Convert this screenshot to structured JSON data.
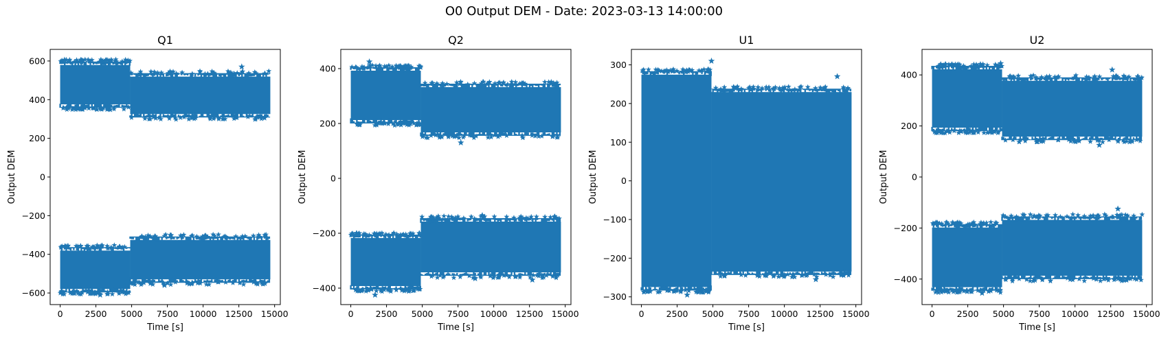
{
  "figure": {
    "suptitle": "O0 Output DEM - Date: 2023-03-13 14:00:00"
  },
  "colors": {
    "series": "#1f77b4",
    "axes": "#000000",
    "background": "#ffffff"
  },
  "chart_data": [
    {
      "type": "scatter",
      "title": "Q1",
      "xlabel": "Time [s]",
      "ylabel": "Output DEM",
      "marker": "star",
      "xlim": [
        -700,
        15400
      ],
      "ylim": [
        -660,
        660
      ],
      "xticks": [
        0,
        2500,
        5000,
        7500,
        10000,
        12500,
        15000
      ],
      "yticks": [
        -600,
        -400,
        -200,
        0,
        200,
        400,
        600
      ],
      "grid": false,
      "bands": [
        {
          "x_start": 0,
          "x_end": 4900,
          "y_low": 365,
          "y_high": 590
        },
        {
          "x_start": 4900,
          "x_end": 14700,
          "y_low": 315,
          "y_high": 530
        },
        {
          "x_start": 0,
          "x_end": 4900,
          "y_low": -590,
          "y_high": -370
        },
        {
          "x_start": 4900,
          "x_end": 14700,
          "y_low": -540,
          "y_high": -315
        }
      ],
      "outliers": [
        {
          "x": 12700,
          "y": 570
        },
        {
          "x": 300,
          "y": 605
        },
        {
          "x": 2800,
          "y": -610
        },
        {
          "x": 7300,
          "y": -560
        }
      ]
    },
    {
      "type": "scatter",
      "title": "Q2",
      "xlabel": "Time [s]",
      "ylabel": "Output DEM",
      "marker": "star",
      "xlim": [
        -700,
        15400
      ],
      "ylim": [
        -460,
        470
      ],
      "xticks": [
        0,
        2500,
        5000,
        7500,
        10000,
        12500,
        15000
      ],
      "yticks": [
        -400,
        -200,
        0,
        200,
        400
      ],
      "grid": false,
      "bands": [
        {
          "x_start": 0,
          "x_end": 4900,
          "y_low": 205,
          "y_high": 400
        },
        {
          "x_start": 4900,
          "x_end": 14700,
          "y_low": 160,
          "y_high": 340
        },
        {
          "x_start": 0,
          "x_end": 4900,
          "y_low": -400,
          "y_high": -210
        },
        {
          "x_start": 4900,
          "x_end": 14700,
          "y_low": -350,
          "y_high": -150
        }
      ],
      "outliers": [
        {
          "x": 1300,
          "y": 425
        },
        {
          "x": 7700,
          "y": 130
        },
        {
          "x": 1700,
          "y": -425
        },
        {
          "x": 8700,
          "y": -365
        },
        {
          "x": 12700,
          "y": -370
        },
        {
          "x": 9200,
          "y": -135
        }
      ]
    },
    {
      "type": "scatter",
      "title": "U1",
      "xlabel": "Time [s]",
      "ylabel": "Output DEM",
      "marker": "star",
      "xlim": [
        -700,
        15400
      ],
      "ylim": [
        -320,
        340
      ],
      "xticks": [
        0,
        2500,
        5000,
        7500,
        10000,
        12500,
        15000
      ],
      "yticks": [
        -300,
        -200,
        -100,
        0,
        100,
        200,
        300
      ],
      "grid": false,
      "bands": [
        {
          "x_start": 0,
          "x_end": 4900,
          "y_low": -280,
          "y_high": 280
        },
        {
          "x_start": 4900,
          "x_end": 14700,
          "y_low": -240,
          "y_high": 235
        }
      ],
      "outliers": [
        {
          "x": 4900,
          "y": 310
        },
        {
          "x": 13700,
          "y": 270
        },
        {
          "x": 3200,
          "y": -295
        },
        {
          "x": 12200,
          "y": -255
        }
      ]
    },
    {
      "type": "scatter",
      "title": "U2",
      "xlabel": "Time [s]",
      "ylabel": "Output DEM",
      "marker": "star",
      "xlim": [
        -700,
        15400
      ],
      "ylim": [
        -500,
        500
      ],
      "xticks": [
        0,
        2500,
        5000,
        7500,
        10000,
        12500,
        15000
      ],
      "yticks": [
        -400,
        -200,
        0,
        200,
        400
      ],
      "grid": false,
      "bands": [
        {
          "x_start": 0,
          "x_end": 4900,
          "y_low": 185,
          "y_high": 430
        },
        {
          "x_start": 4900,
          "x_end": 14700,
          "y_low": 150,
          "y_high": 385
        },
        {
          "x_start": 0,
          "x_end": 4900,
          "y_low": -440,
          "y_high": -190
        },
        {
          "x_start": 4900,
          "x_end": 14700,
          "y_low": -395,
          "y_high": -160
        }
      ],
      "outliers": [
        {
          "x": 4800,
          "y": 445
        },
        {
          "x": 12600,
          "y": 420
        },
        {
          "x": 11700,
          "y": 125
        },
        {
          "x": 3500,
          "y": -455
        },
        {
          "x": 13000,
          "y": -125
        },
        {
          "x": 9500,
          "y": -395
        }
      ]
    }
  ]
}
